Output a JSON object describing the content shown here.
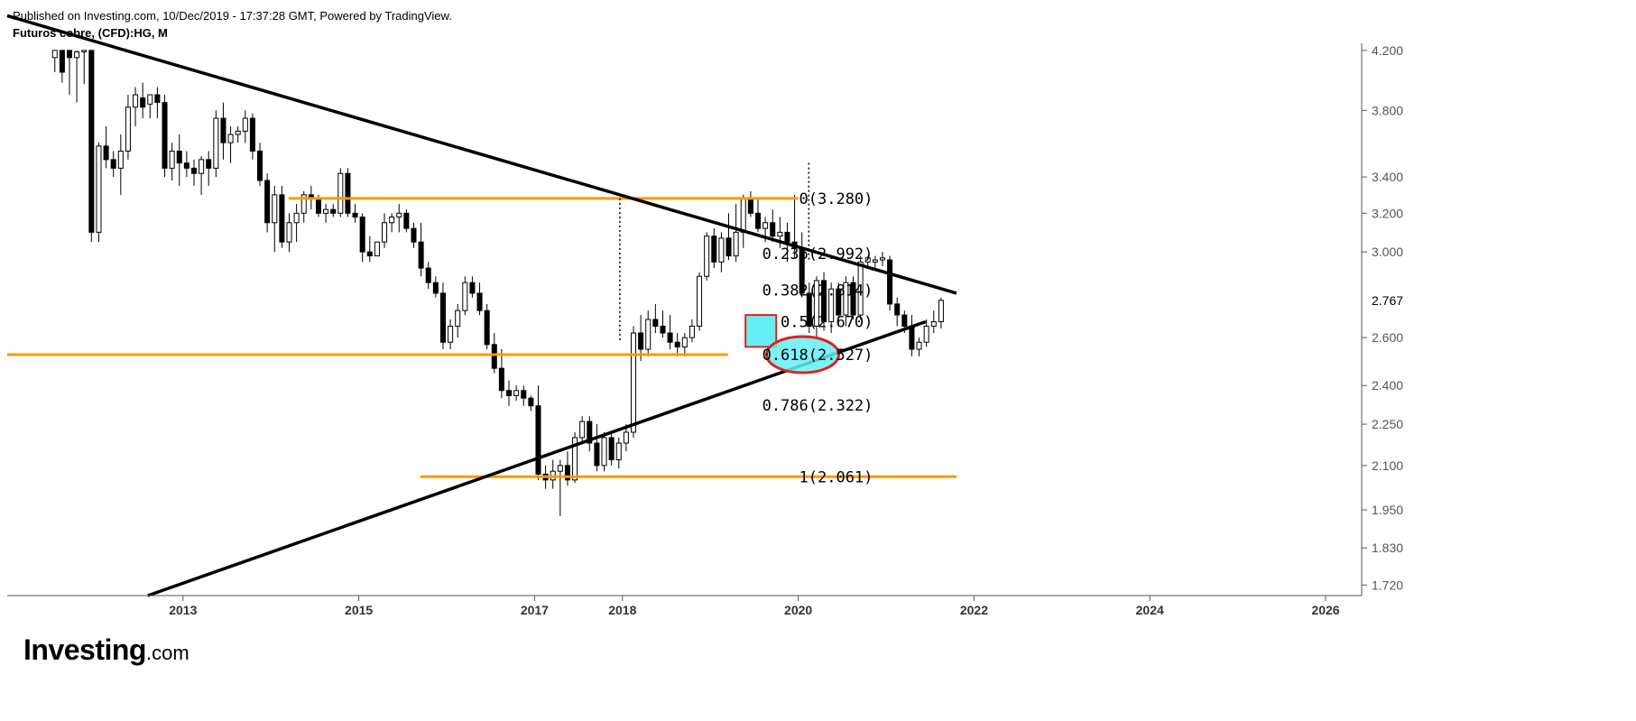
{
  "header": {
    "published": "Published on Investing.com, 10/Dec/2019 - 17:37:28 GMT, Powered by TradingView.",
    "symbol": "Futuros cobre, (CFD):HG, M"
  },
  "logo": {
    "main": "Investing",
    "suffix": ".com"
  },
  "colors": {
    "up_fill": "#ffffff",
    "down_fill": "#000000",
    "trendline": "#000000",
    "support_resistance": "#ff9800",
    "highlight_fill": "#66f0f4",
    "highlight_border": "#e02020",
    "axis": "#555555"
  },
  "chart_data": {
    "type": "candlestick",
    "timeframe": "M",
    "y_scale": "log",
    "ylim": [
      1.69,
      4.25
    ],
    "xlim_year": [
      2011.0,
      2026.4
    ],
    "x_ticks": [
      "2013",
      "2015",
      "2017",
      "2018",
      "2020",
      "2022",
      "2024",
      "2026"
    ],
    "x_tick_values": [
      2013,
      2015,
      2017,
      2018,
      2020,
      2022,
      2024,
      2026
    ],
    "y_ticks": [
      "4.200",
      "3.800",
      "3.400",
      "3.200",
      "3.000",
      "2.600",
      "2.400",
      "2.250",
      "2.100",
      "1.950",
      "1.830",
      "1.720"
    ],
    "y_tick_values": [
      4.2,
      3.8,
      3.4,
      3.2,
      3.0,
      2.6,
      2.4,
      2.25,
      2.1,
      1.95,
      1.83,
      1.72
    ],
    "last_price": {
      "label": "2.767",
      "value": 2.767
    },
    "series": [
      {
        "date": "2011-07",
        "open": 4.15,
        "high": 4.2,
        "low": 4.05,
        "close": 4.2
      },
      {
        "date": "2011-08",
        "open": 4.2,
        "high": 4.2,
        "low": 3.98,
        "close": 4.05
      },
      {
        "date": "2011-09",
        "open": 4.2,
        "high": 4.2,
        "low": 3.9,
        "close": 4.15
      },
      {
        "date": "2011-10",
        "open": 4.15,
        "high": 4.2,
        "low": 3.85,
        "close": 4.19
      },
      {
        "date": "2011-11",
        "open": 4.19,
        "high": 4.2,
        "low": 3.97,
        "close": 4.2
      },
      {
        "date": "2011-12",
        "open": 4.2,
        "high": 4.2,
        "low": 3.05,
        "close": 3.1
      },
      {
        "date": "2012-01",
        "open": 3.1,
        "high": 3.6,
        "low": 3.05,
        "close": 3.58
      },
      {
        "date": "2012-02",
        "open": 3.58,
        "high": 3.7,
        "low": 3.45,
        "close": 3.5
      },
      {
        "date": "2012-03",
        "open": 3.5,
        "high": 3.55,
        "low": 3.4,
        "close": 3.45
      },
      {
        "date": "2012-04",
        "open": 3.45,
        "high": 3.65,
        "low": 3.3,
        "close": 3.55
      },
      {
        "date": "2012-05",
        "open": 3.55,
        "high": 3.9,
        "low": 3.5,
        "close": 3.82
      },
      {
        "date": "2012-06",
        "open": 3.82,
        "high": 3.95,
        "low": 3.7,
        "close": 3.9
      },
      {
        "date": "2012-07",
        "open": 3.88,
        "high": 3.98,
        "low": 3.75,
        "close": 3.82
      },
      {
        "date": "2012-08",
        "open": 3.84,
        "high": 3.9,
        "low": 3.75,
        "close": 3.9
      },
      {
        "date": "2012-09",
        "open": 3.9,
        "high": 3.95,
        "low": 3.75,
        "close": 3.85
      },
      {
        "date": "2012-10",
        "open": 3.85,
        "high": 3.9,
        "low": 3.4,
        "close": 3.45
      },
      {
        "date": "2012-11",
        "open": 3.45,
        "high": 3.6,
        "low": 3.38,
        "close": 3.55
      },
      {
        "date": "2012-12",
        "open": 3.55,
        "high": 3.65,
        "low": 3.35,
        "close": 3.48
      },
      {
        "date": "2013-01",
        "open": 3.48,
        "high": 3.55,
        "low": 3.4,
        "close": 3.45
      },
      {
        "date": "2013-02",
        "open": 3.45,
        "high": 3.5,
        "low": 3.35,
        "close": 3.42
      },
      {
        "date": "2013-03",
        "open": 3.42,
        "high": 3.52,
        "low": 3.3,
        "close": 3.5
      },
      {
        "date": "2013-04",
        "open": 3.5,
        "high": 3.55,
        "low": 3.35,
        "close": 3.45
      },
      {
        "date": "2013-05",
        "open": 3.45,
        "high": 3.8,
        "low": 3.4,
        "close": 3.75
      },
      {
        "date": "2013-06",
        "open": 3.75,
        "high": 3.85,
        "low": 3.5,
        "close": 3.6
      },
      {
        "date": "2013-07",
        "open": 3.6,
        "high": 3.7,
        "low": 3.48,
        "close": 3.65
      },
      {
        "date": "2013-08",
        "open": 3.65,
        "high": 3.7,
        "low": 3.6,
        "close": 3.67
      },
      {
        "date": "2013-09",
        "open": 3.67,
        "high": 3.8,
        "low": 3.6,
        "close": 3.75
      },
      {
        "date": "2013-10",
        "open": 3.75,
        "high": 3.78,
        "low": 3.5,
        "close": 3.55
      },
      {
        "date": "2013-11",
        "open": 3.55,
        "high": 3.6,
        "low": 3.35,
        "close": 3.38
      },
      {
        "date": "2013-12",
        "open": 3.38,
        "high": 3.42,
        "low": 3.1,
        "close": 3.15
      },
      {
        "date": "2014-01",
        "open": 3.15,
        "high": 3.35,
        "low": 3.0,
        "close": 3.3
      },
      {
        "date": "2014-02",
        "open": 3.3,
        "high": 3.35,
        "low": 3.02,
        "close": 3.05
      },
      {
        "date": "2014-03",
        "open": 3.05,
        "high": 3.2,
        "low": 3.0,
        "close": 3.15
      },
      {
        "date": "2014-04",
        "open": 3.15,
        "high": 3.25,
        "low": 3.05,
        "close": 3.2
      },
      {
        "date": "2014-05",
        "open": 3.2,
        "high": 3.32,
        "low": 3.15,
        "close": 3.3
      },
      {
        "date": "2014-06",
        "open": 3.3,
        "high": 3.35,
        "low": 3.22,
        "close": 3.28
      },
      {
        "date": "2014-07",
        "open": 3.28,
        "high": 3.3,
        "low": 3.18,
        "close": 3.2
      },
      {
        "date": "2014-08",
        "open": 3.2,
        "high": 3.25,
        "low": 3.15,
        "close": 3.22
      },
      {
        "date": "2014-09",
        "open": 3.22,
        "high": 3.25,
        "low": 3.18,
        "close": 3.2
      },
      {
        "date": "2014-10",
        "open": 3.2,
        "high": 3.45,
        "low": 3.18,
        "close": 3.42
      },
      {
        "date": "2014-11",
        "open": 3.42,
        "high": 3.45,
        "low": 3.18,
        "close": 3.2
      },
      {
        "date": "2014-12",
        "open": 3.2,
        "high": 3.25,
        "low": 3.15,
        "close": 3.18
      },
      {
        "date": "2015-01",
        "open": 3.18,
        "high": 3.2,
        "low": 2.95,
        "close": 3.0
      },
      {
        "date": "2015-02",
        "open": 3.0,
        "high": 3.08,
        "low": 2.95,
        "close": 2.98
      },
      {
        "date": "2015-03",
        "open": 2.98,
        "high": 3.05,
        "low": 2.98,
        "close": 3.05
      },
      {
        "date": "2015-04",
        "open": 3.05,
        "high": 3.2,
        "low": 3.02,
        "close": 3.15
      },
      {
        "date": "2015-05",
        "open": 3.15,
        "high": 3.2,
        "low": 3.1,
        "close": 3.18
      },
      {
        "date": "2015-06",
        "open": 3.18,
        "high": 3.25,
        "low": 3.1,
        "close": 3.2
      },
      {
        "date": "2015-07",
        "open": 3.2,
        "high": 3.22,
        "low": 3.1,
        "close": 3.12
      },
      {
        "date": "2015-08",
        "open": 3.12,
        "high": 3.15,
        "low": 3.02,
        "close": 3.05
      },
      {
        "date": "2015-09",
        "open": 3.05,
        "high": 3.15,
        "low": 2.88,
        "close": 2.92
      },
      {
        "date": "2015-10",
        "open": 2.92,
        "high": 2.95,
        "low": 2.82,
        "close": 2.85
      },
      {
        "date": "2015-11",
        "open": 2.85,
        "high": 2.88,
        "low": 2.78,
        "close": 2.8
      },
      {
        "date": "2015-12",
        "open": 2.8,
        "high": 2.85,
        "low": 2.55,
        "close": 2.58
      },
      {
        "date": "2016-01",
        "open": 2.58,
        "high": 2.68,
        "low": 2.55,
        "close": 2.65
      },
      {
        "date": "2016-02",
        "open": 2.65,
        "high": 2.75,
        "low": 2.6,
        "close": 2.72
      },
      {
        "date": "2016-03",
        "open": 2.72,
        "high": 2.88,
        "low": 2.7,
        "close": 2.85
      },
      {
        "date": "2016-04",
        "open": 2.85,
        "high": 2.88,
        "low": 2.78,
        "close": 2.8
      },
      {
        "date": "2016-05",
        "open": 2.8,
        "high": 2.85,
        "low": 2.7,
        "close": 2.72
      },
      {
        "date": "2016-06",
        "open": 2.72,
        "high": 2.75,
        "low": 2.55,
        "close": 2.57
      },
      {
        "date": "2016-07",
        "open": 2.57,
        "high": 2.62,
        "low": 2.45,
        "close": 2.47
      },
      {
        "date": "2016-08",
        "open": 2.47,
        "high": 2.55,
        "low": 2.35,
        "close": 2.38
      },
      {
        "date": "2016-09",
        "open": 2.38,
        "high": 2.42,
        "low": 2.32,
        "close": 2.36
      },
      {
        "date": "2016-10",
        "open": 2.36,
        "high": 2.4,
        "low": 2.34,
        "close": 2.38
      },
      {
        "date": "2016-11",
        "open": 2.38,
        "high": 2.4,
        "low": 2.32,
        "close": 2.35
      },
      {
        "date": "2016-12",
        "open": 2.35,
        "high": 2.36,
        "low": 2.3,
        "close": 2.32
      },
      {
        "date": "2017-01",
        "open": 2.32,
        "high": 2.4,
        "low": 2.05,
        "close": 2.07
      },
      {
        "date": "2017-02",
        "open": 2.07,
        "high": 2.1,
        "low": 2.02,
        "close": 2.05
      },
      {
        "date": "2017-03",
        "open": 2.05,
        "high": 2.12,
        "low": 2.02,
        "close": 2.08
      },
      {
        "date": "2017-04",
        "open": 2.08,
        "high": 2.12,
        "low": 1.93,
        "close": 2.1
      },
      {
        "date": "2017-05",
        "open": 2.1,
        "high": 2.15,
        "low": 2.03,
        "close": 2.05
      },
      {
        "date": "2017-06",
        "open": 2.05,
        "high": 2.22,
        "low": 2.04,
        "close": 2.2
      },
      {
        "date": "2017-07",
        "open": 2.2,
        "high": 2.28,
        "low": 2.18,
        "close": 2.26
      },
      {
        "date": "2017-08",
        "open": 2.26,
        "high": 2.28,
        "low": 2.15,
        "close": 2.18
      },
      {
        "date": "2017-09",
        "open": 2.18,
        "high": 2.25,
        "low": 2.08,
        "close": 2.1
      },
      {
        "date": "2017-10",
        "open": 2.1,
        "high": 2.22,
        "low": 2.08,
        "close": 2.2
      },
      {
        "date": "2017-11",
        "open": 2.2,
        "high": 2.22,
        "low": 2.1,
        "close": 2.12
      },
      {
        "date": "2017-12",
        "open": 2.12,
        "high": 2.2,
        "low": 2.09,
        "close": 2.18
      },
      {
        "date": "2018-01",
        "open": 2.18,
        "high": 2.25,
        "low": 2.15,
        "close": 2.22
      },
      {
        "date": "2018-02",
        "open": 2.22,
        "high": 2.65,
        "low": 2.2,
        "close": 2.62
      },
      {
        "date": "2018-03",
        "open": 2.62,
        "high": 2.7,
        "low": 2.5,
        "close": 2.55
      },
      {
        "date": "2018-04",
        "open": 2.55,
        "high": 2.72,
        "low": 2.52,
        "close": 2.68
      },
      {
        "date": "2018-05",
        "open": 2.68,
        "high": 2.75,
        "low": 2.62,
        "close": 2.65
      },
      {
        "date": "2018-06",
        "open": 2.65,
        "high": 2.72,
        "low": 2.6,
        "close": 2.62
      },
      {
        "date": "2018-07",
        "open": 2.62,
        "high": 2.7,
        "low": 2.55,
        "close": 2.58
      },
      {
        "date": "2018-08",
        "open": 2.58,
        "high": 2.62,
        "low": 2.52,
        "close": 2.56
      },
      {
        "date": "2018-09",
        "open": 2.56,
        "high": 2.62,
        "low": 2.52,
        "close": 2.6
      },
      {
        "date": "2018-10",
        "open": 2.6,
        "high": 2.68,
        "low": 2.58,
        "close": 2.65
      },
      {
        "date": "2018-11",
        "open": 2.65,
        "high": 2.9,
        "low": 2.63,
        "close": 2.88
      },
      {
        "date": "2018-12",
        "open": 2.88,
        "high": 3.1,
        "low": 2.86,
        "close": 3.08
      },
      {
        "date": "2019-01",
        "open": 3.08,
        "high": 3.12,
        "low": 2.92,
        "close": 2.95
      },
      {
        "date": "2019-02",
        "open": 2.95,
        "high": 3.1,
        "low": 2.9,
        "close": 3.07
      },
      {
        "date": "2019-03",
        "open": 3.07,
        "high": 3.2,
        "low": 2.96,
        "close": 2.98
      },
      {
        "date": "2019-04",
        "open": 2.98,
        "high": 3.25,
        "low": 2.95,
        "close": 3.1
      },
      {
        "date": "2019-05",
        "open": 3.1,
        "high": 3.3,
        "low": 3.02,
        "close": 3.28
      },
      {
        "date": "2019-06",
        "open": 3.28,
        "high": 3.32,
        "low": 3.18,
        "close": 3.2
      },
      {
        "date": "2019-07",
        "open": 3.2,
        "high": 3.28,
        "low": 3.1,
        "close": 3.12
      },
      {
        "date": "2019-08",
        "open": 3.12,
        "high": 3.18,
        "low": 3.05,
        "close": 3.15
      },
      {
        "date": "2019-09",
        "open": 3.15,
        "high": 3.22,
        "low": 3.05,
        "close": 3.08
      },
      {
        "date": "2019-10",
        "open": 3.08,
        "high": 3.18,
        "low": 3.02,
        "close": 3.1
      },
      {
        "date": "2019-11",
        "open": 3.1,
        "high": 3.15,
        "low": 2.95,
        "close": 3.05
      },
      {
        "date": "2019-12",
        "open": 3.05,
        "high": 3.3,
        "low": 2.97,
        "close": 3.02
      },
      {
        "date": "2020-01",
        "open": 3.02,
        "high": 3.1,
        "low": 2.78,
        "close": 2.8
      },
      {
        "date": "2020-02",
        "open": 2.8,
        "high": 2.85,
        "low": 2.62,
        "close": 2.65
      },
      {
        "date": "2020-03",
        "open": 2.65,
        "high": 2.88,
        "low": 2.6,
        "close": 2.86
      },
      {
        "date": "2020-04",
        "open": 2.86,
        "high": 2.9,
        "low": 2.63,
        "close": 2.67
      },
      {
        "date": "2020-05",
        "open": 2.67,
        "high": 2.85,
        "low": 2.62,
        "close": 2.82
      },
      {
        "date": "2020-06",
        "open": 2.82,
        "high": 2.85,
        "low": 2.65,
        "close": 2.7
      },
      {
        "date": "2020-07",
        "open": 2.7,
        "high": 2.88,
        "low": 2.65,
        "close": 2.85
      },
      {
        "date": "2020-08",
        "open": 2.85,
        "high": 2.88,
        "low": 2.68,
        "close": 2.7
      },
      {
        "date": "2020-09",
        "open": 2.7,
        "high": 2.98,
        "low": 2.68,
        "close": 2.95
      },
      {
        "date": "2020-10",
        "open": 2.95,
        "high": 2.98,
        "low": 2.93,
        "close": 2.97
      },
      {
        "date": "2020-11",
        "open": 2.95,
        "high": 2.98,
        "low": 2.92,
        "close": 2.96
      },
      {
        "date": "2020-12",
        "open": 2.96,
        "high": 3.0,
        "low": 2.93,
        "close": 2.97
      },
      {
        "date": "2021-01",
        "open": 2.96,
        "high": 2.98,
        "low": 2.72,
        "close": 2.75
      },
      {
        "date": "2021-02",
        "open": 2.75,
        "high": 2.78,
        "low": 2.65,
        "close": 2.7
      },
      {
        "date": "2021-03",
        "open": 2.7,
        "high": 2.72,
        "low": 2.62,
        "close": 2.65
      },
      {
        "date": "2021-04",
        "open": 2.65,
        "high": 2.7,
        "low": 2.52,
        "close": 2.55
      },
      {
        "date": "2021-05",
        "open": 2.55,
        "high": 2.6,
        "low": 2.52,
        "close": 2.58
      },
      {
        "date": "2021-06",
        "open": 2.58,
        "high": 2.68,
        "low": 2.56,
        "close": 2.65
      },
      {
        "date": "2021-07",
        "open": 2.65,
        "high": 2.72,
        "low": 2.62,
        "close": 2.67
      },
      {
        "date": "2021-08",
        "open": 2.67,
        "high": 2.78,
        "low": 2.64,
        "close": 2.767
      }
    ],
    "trendlines": [
      {
        "name": "descending-resistance",
        "from": [
          2011.0,
          4.45
        ],
        "to": [
          2021.8,
          2.8
        ]
      },
      {
        "name": "ascending-support",
        "from": [
          2012.6,
          1.69
        ],
        "to": [
          2021.45,
          2.67
        ]
      }
    ],
    "horizontal_levels": [
      {
        "value": 3.28,
        "from_x": 2014.2,
        "to_x": 2020.0
      },
      {
        "value": 2.527,
        "from_x": 2011.0,
        "to_x": 2019.2
      },
      {
        "value": 2.061,
        "from_x": 2015.7,
        "to_x": 2021.8
      }
    ],
    "fibonacci_levels": [
      {
        "label": "0(3.280)",
        "value": 3.28
      },
      {
        "label": "0.236(2.992)",
        "value": 2.992
      },
      {
        "label": "0.382(2.814)",
        "value": 2.814
      },
      {
        "label": "0.5(2.670)",
        "value": 2.67
      },
      {
        "label": "0.618(2.527)",
        "value": 2.527
      },
      {
        "label": "0.786(2.322)",
        "value": 2.322
      },
      {
        "label": "1(2.061)",
        "value": 2.061
      }
    ],
    "highlight_box": {
      "x_from": 2019.4,
      "x_to": 2019.75,
      "y_low": 2.56,
      "y_high": 2.7
    },
    "highlight_ellipse": {
      "x_center": 2020.05,
      "y_center": 2.527
    },
    "dotted_lines": [
      {
        "x": 2017.97,
        "y_from": 2.58,
        "y_to": 3.28
      },
      {
        "x": 2020.12,
        "y_from": 2.95,
        "y_to": 3.48
      }
    ]
  }
}
